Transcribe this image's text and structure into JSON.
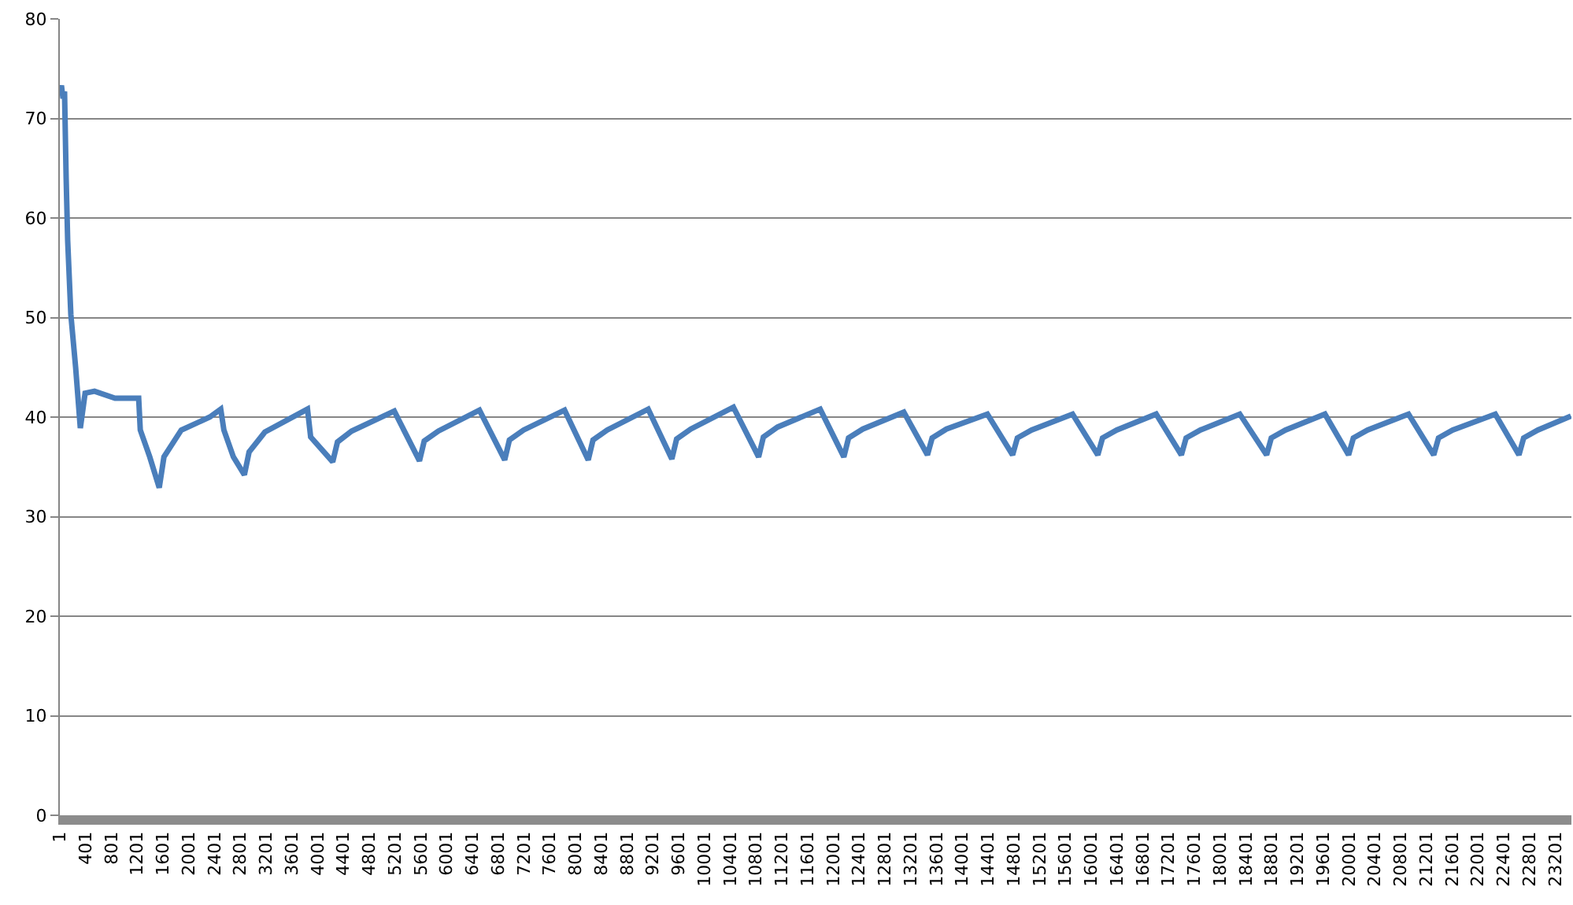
{
  "chart_data": {
    "type": "line",
    "x": [
      1,
      26,
      50,
      74,
      99,
      123,
      172,
      246,
      319,
      393,
      539,
      857,
      1224,
      1249,
      1396,
      1543,
      1616,
      1885,
      2326,
      2497,
      2546,
      2693,
      2864,
      2937,
      3182,
      3843,
      3892,
      4234,
      4308,
      4528,
      5189,
      5580,
      5654,
      5874,
      6510,
      6902,
      6975,
      7195,
      7831,
      8198,
      8272,
      8492,
      9128,
      9495,
      9569,
      9789,
      10450,
      10841,
      10915,
      11135,
      11796,
      12163,
      12236,
      12457,
      13093,
      13460,
      13533,
      13754,
      14390,
      14781,
      14855,
      15075,
      15711,
      16103,
      16176,
      16396,
      17008,
      17399,
      17473,
      17693,
      18305,
      18721,
      18794,
      19014,
      19626,
      19993,
      20067,
      20287,
      20923,
      21314,
      21388,
      21608,
      22269,
      22636,
      22709,
      22929,
      23443
    ],
    "series": [
      {
        "color": "#4a7ebb",
        "values": [
          72.5,
          73.3,
          72,
          72.7,
          64,
          57.7,
          50.3,
          45,
          38.9,
          42.4,
          42.6,
          41.9,
          41.9,
          38.7,
          36,
          32.9,
          36,
          38.7,
          40,
          40.8,
          38.7,
          36,
          34.2,
          36.5,
          38.5,
          40.8,
          38,
          35.5,
          37.5,
          38.6,
          40.6,
          35.6,
          37.6,
          38.6,
          40.7,
          35.7,
          37.7,
          38.7,
          40.7,
          35.7,
          37.7,
          38.7,
          40.8,
          35.8,
          37.8,
          38.8,
          41,
          36,
          38,
          39,
          40.8,
          36,
          37.9,
          38.8,
          40.5,
          36.2,
          37.9,
          38.8,
          40.3,
          36.2,
          37.9,
          38.7,
          40.3,
          36.2,
          37.9,
          38.7,
          40.3,
          36.2,
          37.9,
          38.7,
          40.3,
          36.2,
          37.9,
          38.7,
          40.3,
          36.2,
          37.9,
          38.7,
          40.3,
          36.2,
          37.9,
          38.7,
          40.3,
          36.2,
          37.9,
          38.7,
          40.1
        ]
      }
    ],
    "xlim": [
      1,
      23450
    ],
    "xticks": [
      1,
      401,
      801,
      1201,
      1601,
      2001,
      2401,
      2801,
      3201,
      3601,
      4001,
      4401,
      4801,
      5201,
      5601,
      6001,
      6401,
      6801,
      7201,
      7601,
      8001,
      8401,
      8801,
      9201,
      9601,
      10001,
      10401,
      10801,
      11201,
      11601,
      12001,
      12401,
      12801,
      13201,
      13601,
      14001,
      14401,
      14801,
      15201,
      15601,
      16001,
      16401,
      16801,
      17201,
      17601,
      18001,
      18401,
      18801,
      19201,
      19601,
      20001,
      20401,
      20801,
      21201,
      21601,
      22001,
      22401,
      22801,
      23201
    ],
    "ylim": [
      0,
      80
    ],
    "yticks": [
      0,
      10,
      20,
      30,
      40,
      50,
      60,
      70,
      80
    ],
    "grid": "y",
    "marker": "none",
    "line_style": "solid"
  }
}
